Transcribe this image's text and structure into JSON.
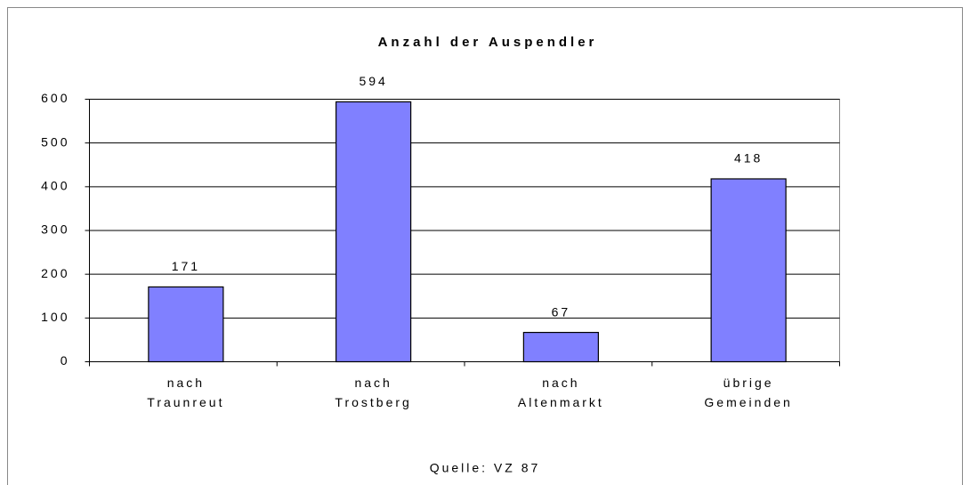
{
  "chart_data": {
    "type": "bar",
    "title": "Anzahl der Auspendler",
    "categories": [
      [
        "nach",
        "Traunreut"
      ],
      [
        "nach",
        "Trostberg"
      ],
      [
        "nach",
        "Altenmarkt"
      ],
      [
        "übrige",
        "Gemeinden"
      ]
    ],
    "values": [
      171,
      594,
      67,
      418
    ],
    "color": "#8080ff",
    "ylim": [
      0,
      600
    ],
    "yticks": [
      0,
      100,
      200,
      300,
      400,
      500,
      600
    ],
    "grid": true,
    "source": "Quelle: VZ 87"
  }
}
